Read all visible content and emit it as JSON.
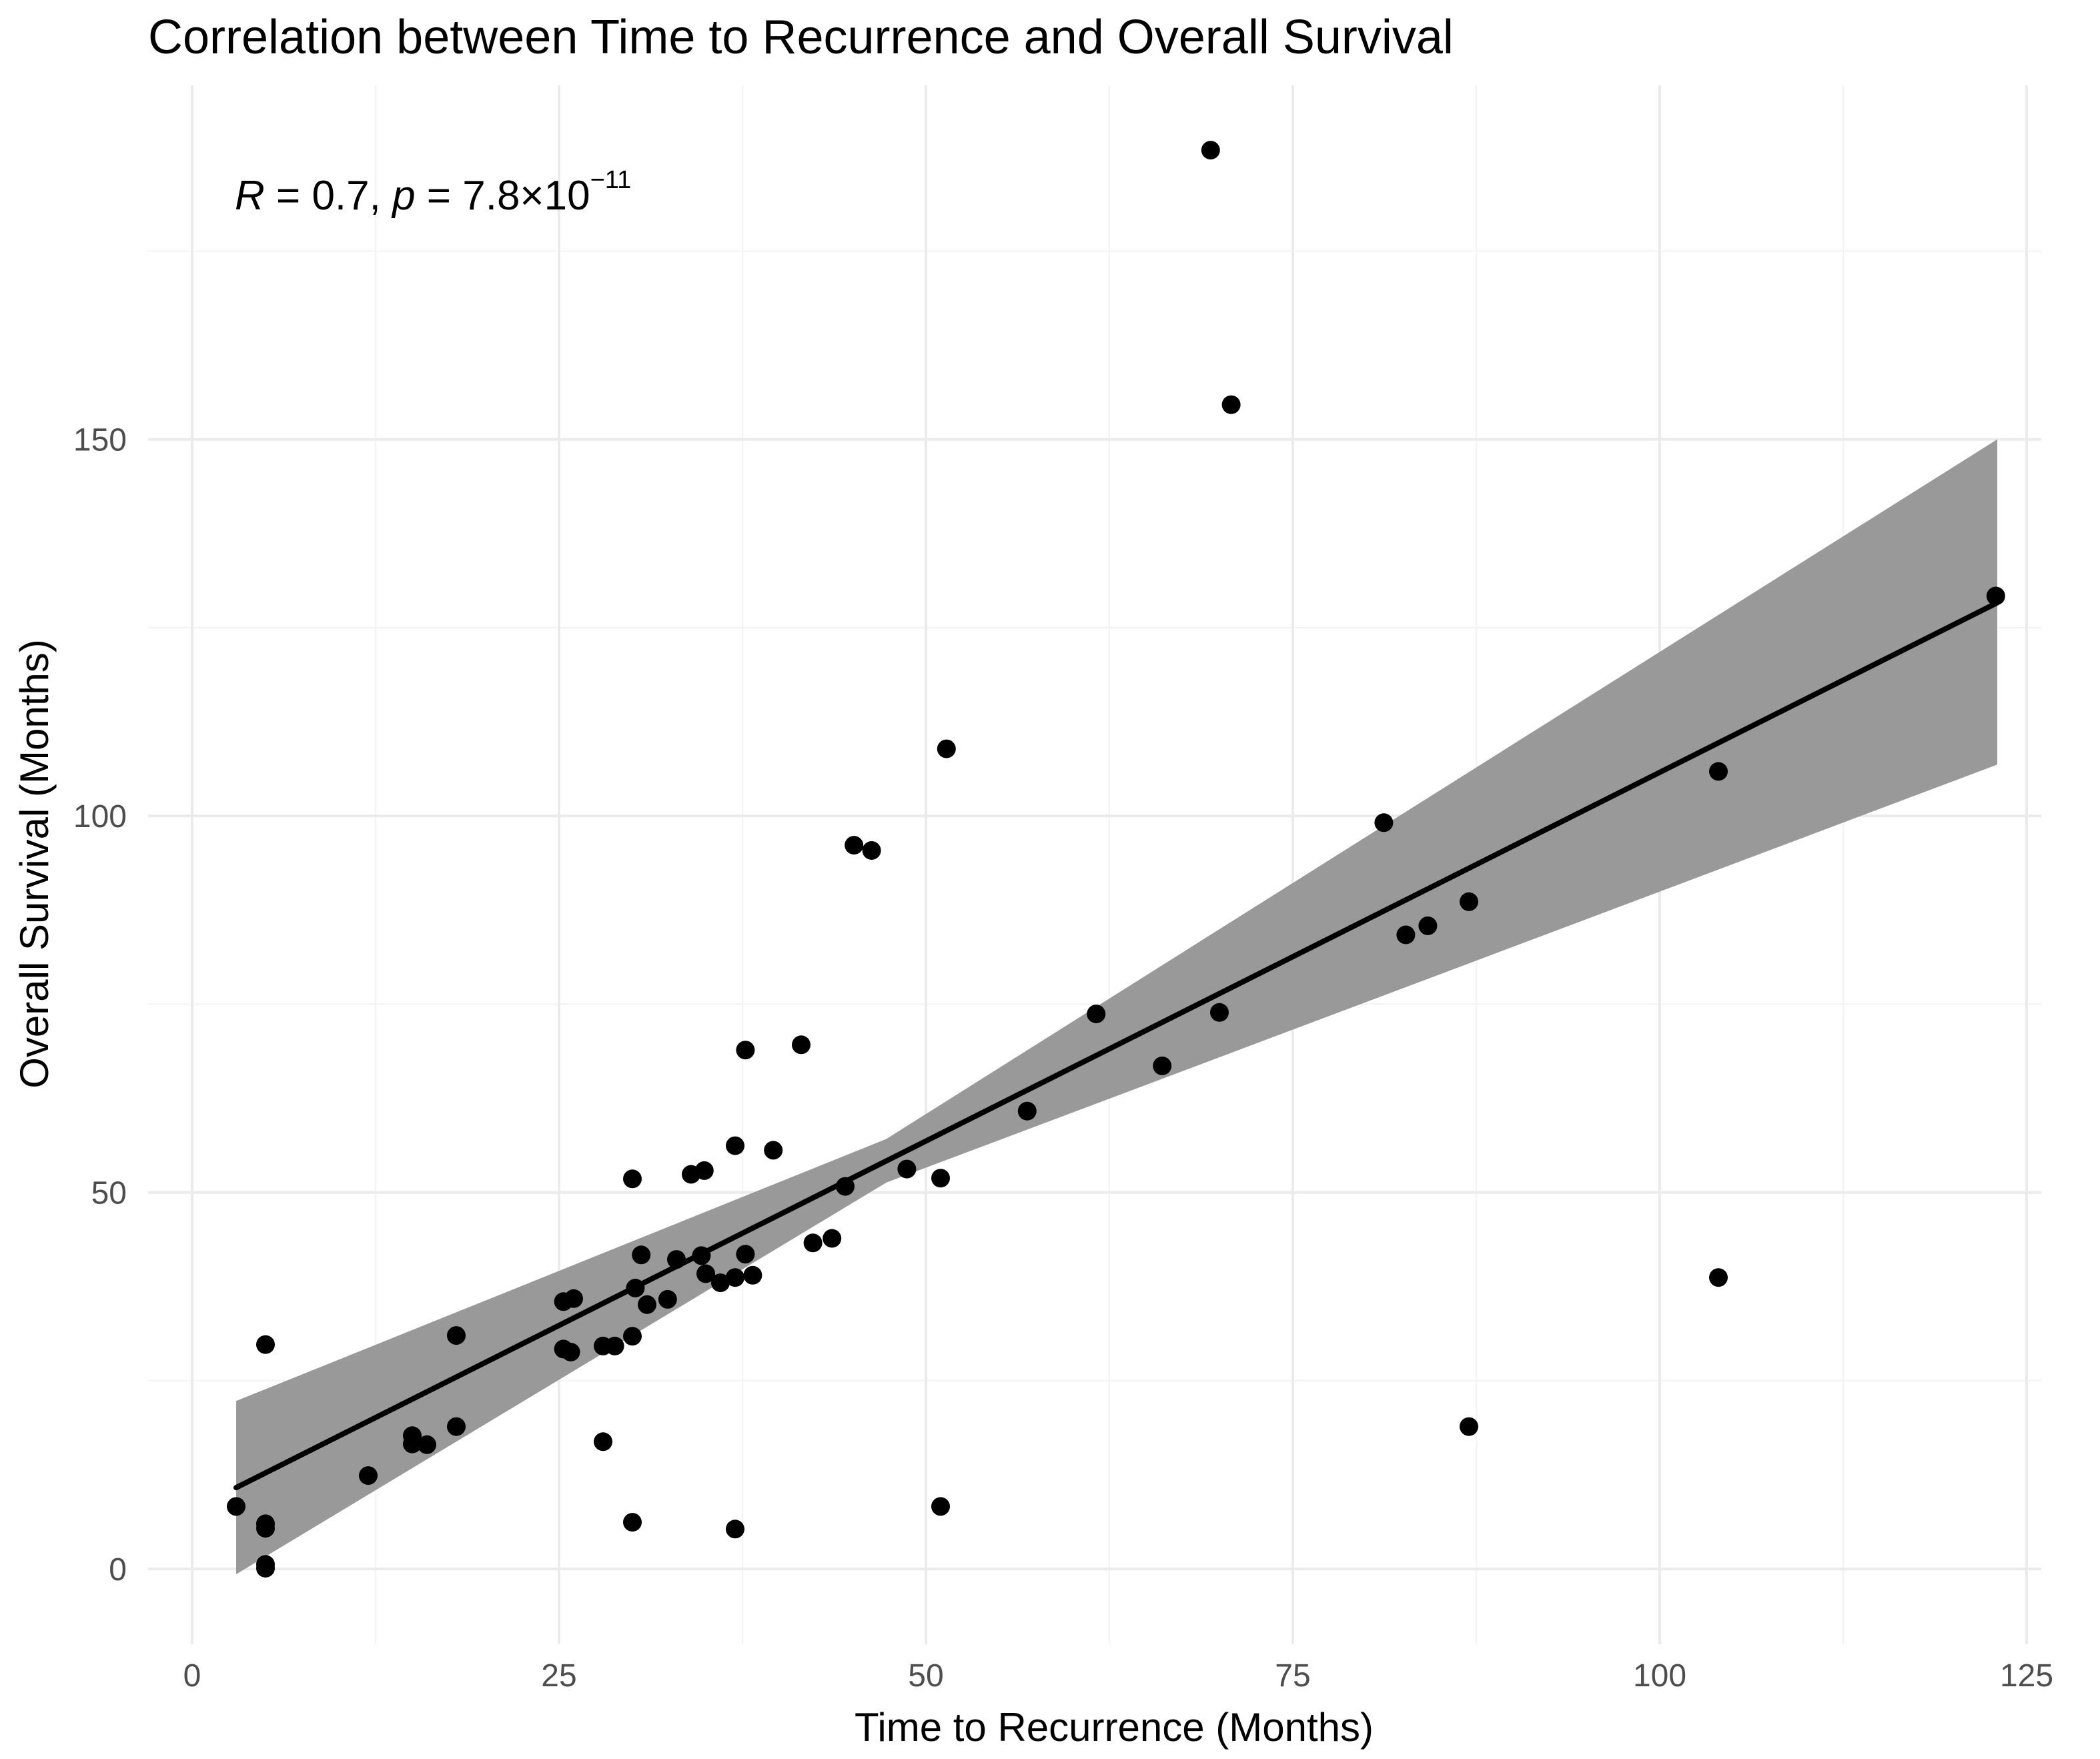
{
  "chart_data": {
    "type": "scatter",
    "title": "Correlation between Time to Recurrence and Overall Survival",
    "xlabel": "Time to Recurrence (Months)",
    "ylabel": "Overall Survival (Months)",
    "xlim": [
      -3,
      126
    ],
    "ylim": [
      -10,
      197
    ],
    "x_ticks": [
      0,
      25,
      50,
      75,
      100,
      125
    ],
    "x_tick_labels": [
      "0",
      "25",
      "50",
      "75",
      "100",
      "125"
    ],
    "y_ticks": [
      0,
      50,
      100,
      150
    ],
    "y_tick_labels": [
      "0",
      "50",
      "100",
      "150"
    ],
    "grid": true,
    "annotation": {
      "r_symbol": "R",
      "r_eq": " = 0.7, ",
      "p_symbol": "p",
      "p_eq": " = 7.8×10",
      "p_exp": "−11"
    },
    "regression": {
      "method": "linear",
      "x_start": 3,
      "y_start": 10.8,
      "x_end": 123,
      "y_end": 128.3,
      "ci_lower_start": -0.7,
      "ci_upper_start": 22.3,
      "ci_lower_end": 106.8,
      "ci_upper_end": 150.0,
      "ci_center_x": 47.3,
      "ci_center_lower": 51.3,
      "ci_center_upper": 57.1,
      "line_color": "#000000",
      "band_color": "#999999"
    },
    "points_color": "#000000",
    "x": [
      69.4,
      70.8,
      51.4,
      45.1,
      46.3,
      122.9,
      104.0,
      81.2,
      84.2,
      82.7,
      87.0,
      61.6,
      70.0,
      37.7,
      41.5,
      66.1,
      56.9,
      48.7,
      51.0,
      37.0,
      39.6,
      34.9,
      34.0,
      30.0,
      44.5,
      42.3,
      43.6,
      30.6,
      33.0,
      34.7,
      35.0,
      37.7,
      30.2,
      32.4,
      31.0,
      36.0,
      37.0,
      38.2,
      26.0,
      25.3,
      25.3,
      25.8,
      28.0,
      28.8,
      18.0,
      30.0,
      5.0,
      18.0,
      15.0,
      15.0,
      16.0,
      28.0,
      12.0,
      3.0,
      5.0,
      5.0,
      5.0,
      5.0,
      30.0,
      37.0,
      51.0,
      104.0,
      87.0
    ],
    "y": [
      188.4,
      154.6,
      108.9,
      96.1,
      95.4,
      129.2,
      105.9,
      99.1,
      85.4,
      84.2,
      88.6,
      73.7,
      73.9,
      68.9,
      69.6,
      66.8,
      60.8,
      53.1,
      51.9,
      56.2,
      55.6,
      52.9,
      52.4,
      51.8,
      50.8,
      43.3,
      43.9,
      41.7,
      41.1,
      41.6,
      39.2,
      41.8,
      37.3,
      35.8,
      35.1,
      38.0,
      38.7,
      39.0,
      35.9,
      35.5,
      29.2,
      28.8,
      29.6,
      29.6,
      31.0,
      30.9,
      29.8,
      18.9,
      17.7,
      16.6,
      16.5,
      16.9,
      12.4,
      8.3,
      6.0,
      5.4,
      0.6,
      0.1,
      6.2,
      5.3,
      8.3,
      38.7,
      18.9
    ]
  }
}
